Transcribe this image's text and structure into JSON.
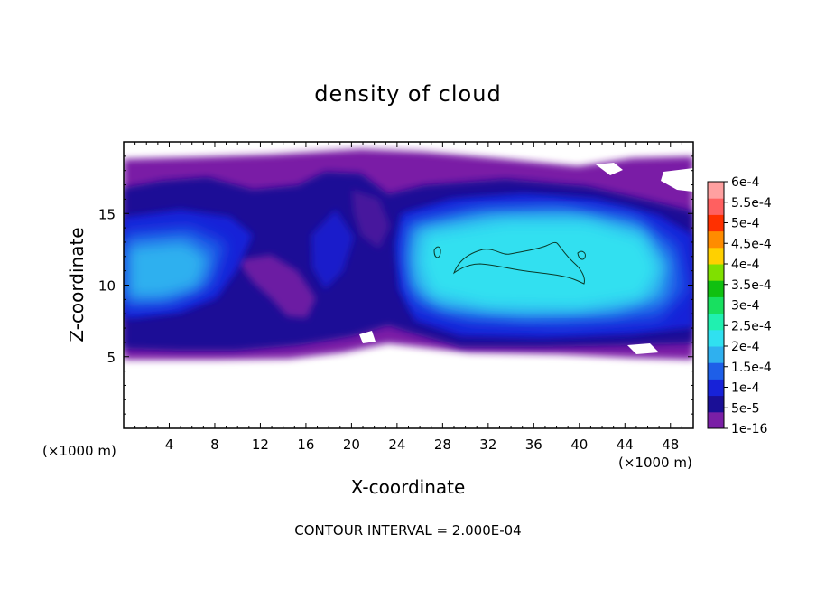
{
  "chart_data": {
    "type": "heatmap",
    "title": "density of cloud",
    "xlabel": "X-coordinate",
    "ylabel": "Z-coordinate",
    "x_unit": "(×1000 m)",
    "y_unit": "(×1000 m)",
    "xlim": [
      0,
      50
    ],
    "ylim": [
      0,
      20
    ],
    "x_ticks": [
      "4",
      "8",
      "12",
      "16",
      "20",
      "24",
      "28",
      "32",
      "36",
      "40",
      "44",
      "48"
    ],
    "y_ticks": [
      "5",
      "10",
      "15"
    ],
    "footer": "CONTOUR INTERVAL = 2.000E-04",
    "colorbar": {
      "labels": [
        "1e-16",
        "5e-5",
        "1e-4",
        "1.5e-4",
        "2e-4",
        "2.5e-4",
        "3e-4",
        "3.5e-4",
        "4e-4",
        "4.5e-4",
        "5e-4",
        "5.5e-4",
        "6e-4"
      ],
      "colors": [
        "#7a1fa6",
        "#1a0f96",
        "#1722d8",
        "#1e5fe8",
        "#2fb0ef",
        "#30e0f0",
        "#20f0b0",
        "#18e060",
        "#10c010",
        "#80e000",
        "#ffd000",
        "#ff8c00",
        "#ff3000",
        "#ff6060",
        "#ffa0a0"
      ]
    },
    "field_description": "cloud density field between z≈5 and z≈19 (×1000 m); peak values ≈2e-4 near x≈30–40, z≈11–12",
    "contour_level": "2e-4"
  }
}
